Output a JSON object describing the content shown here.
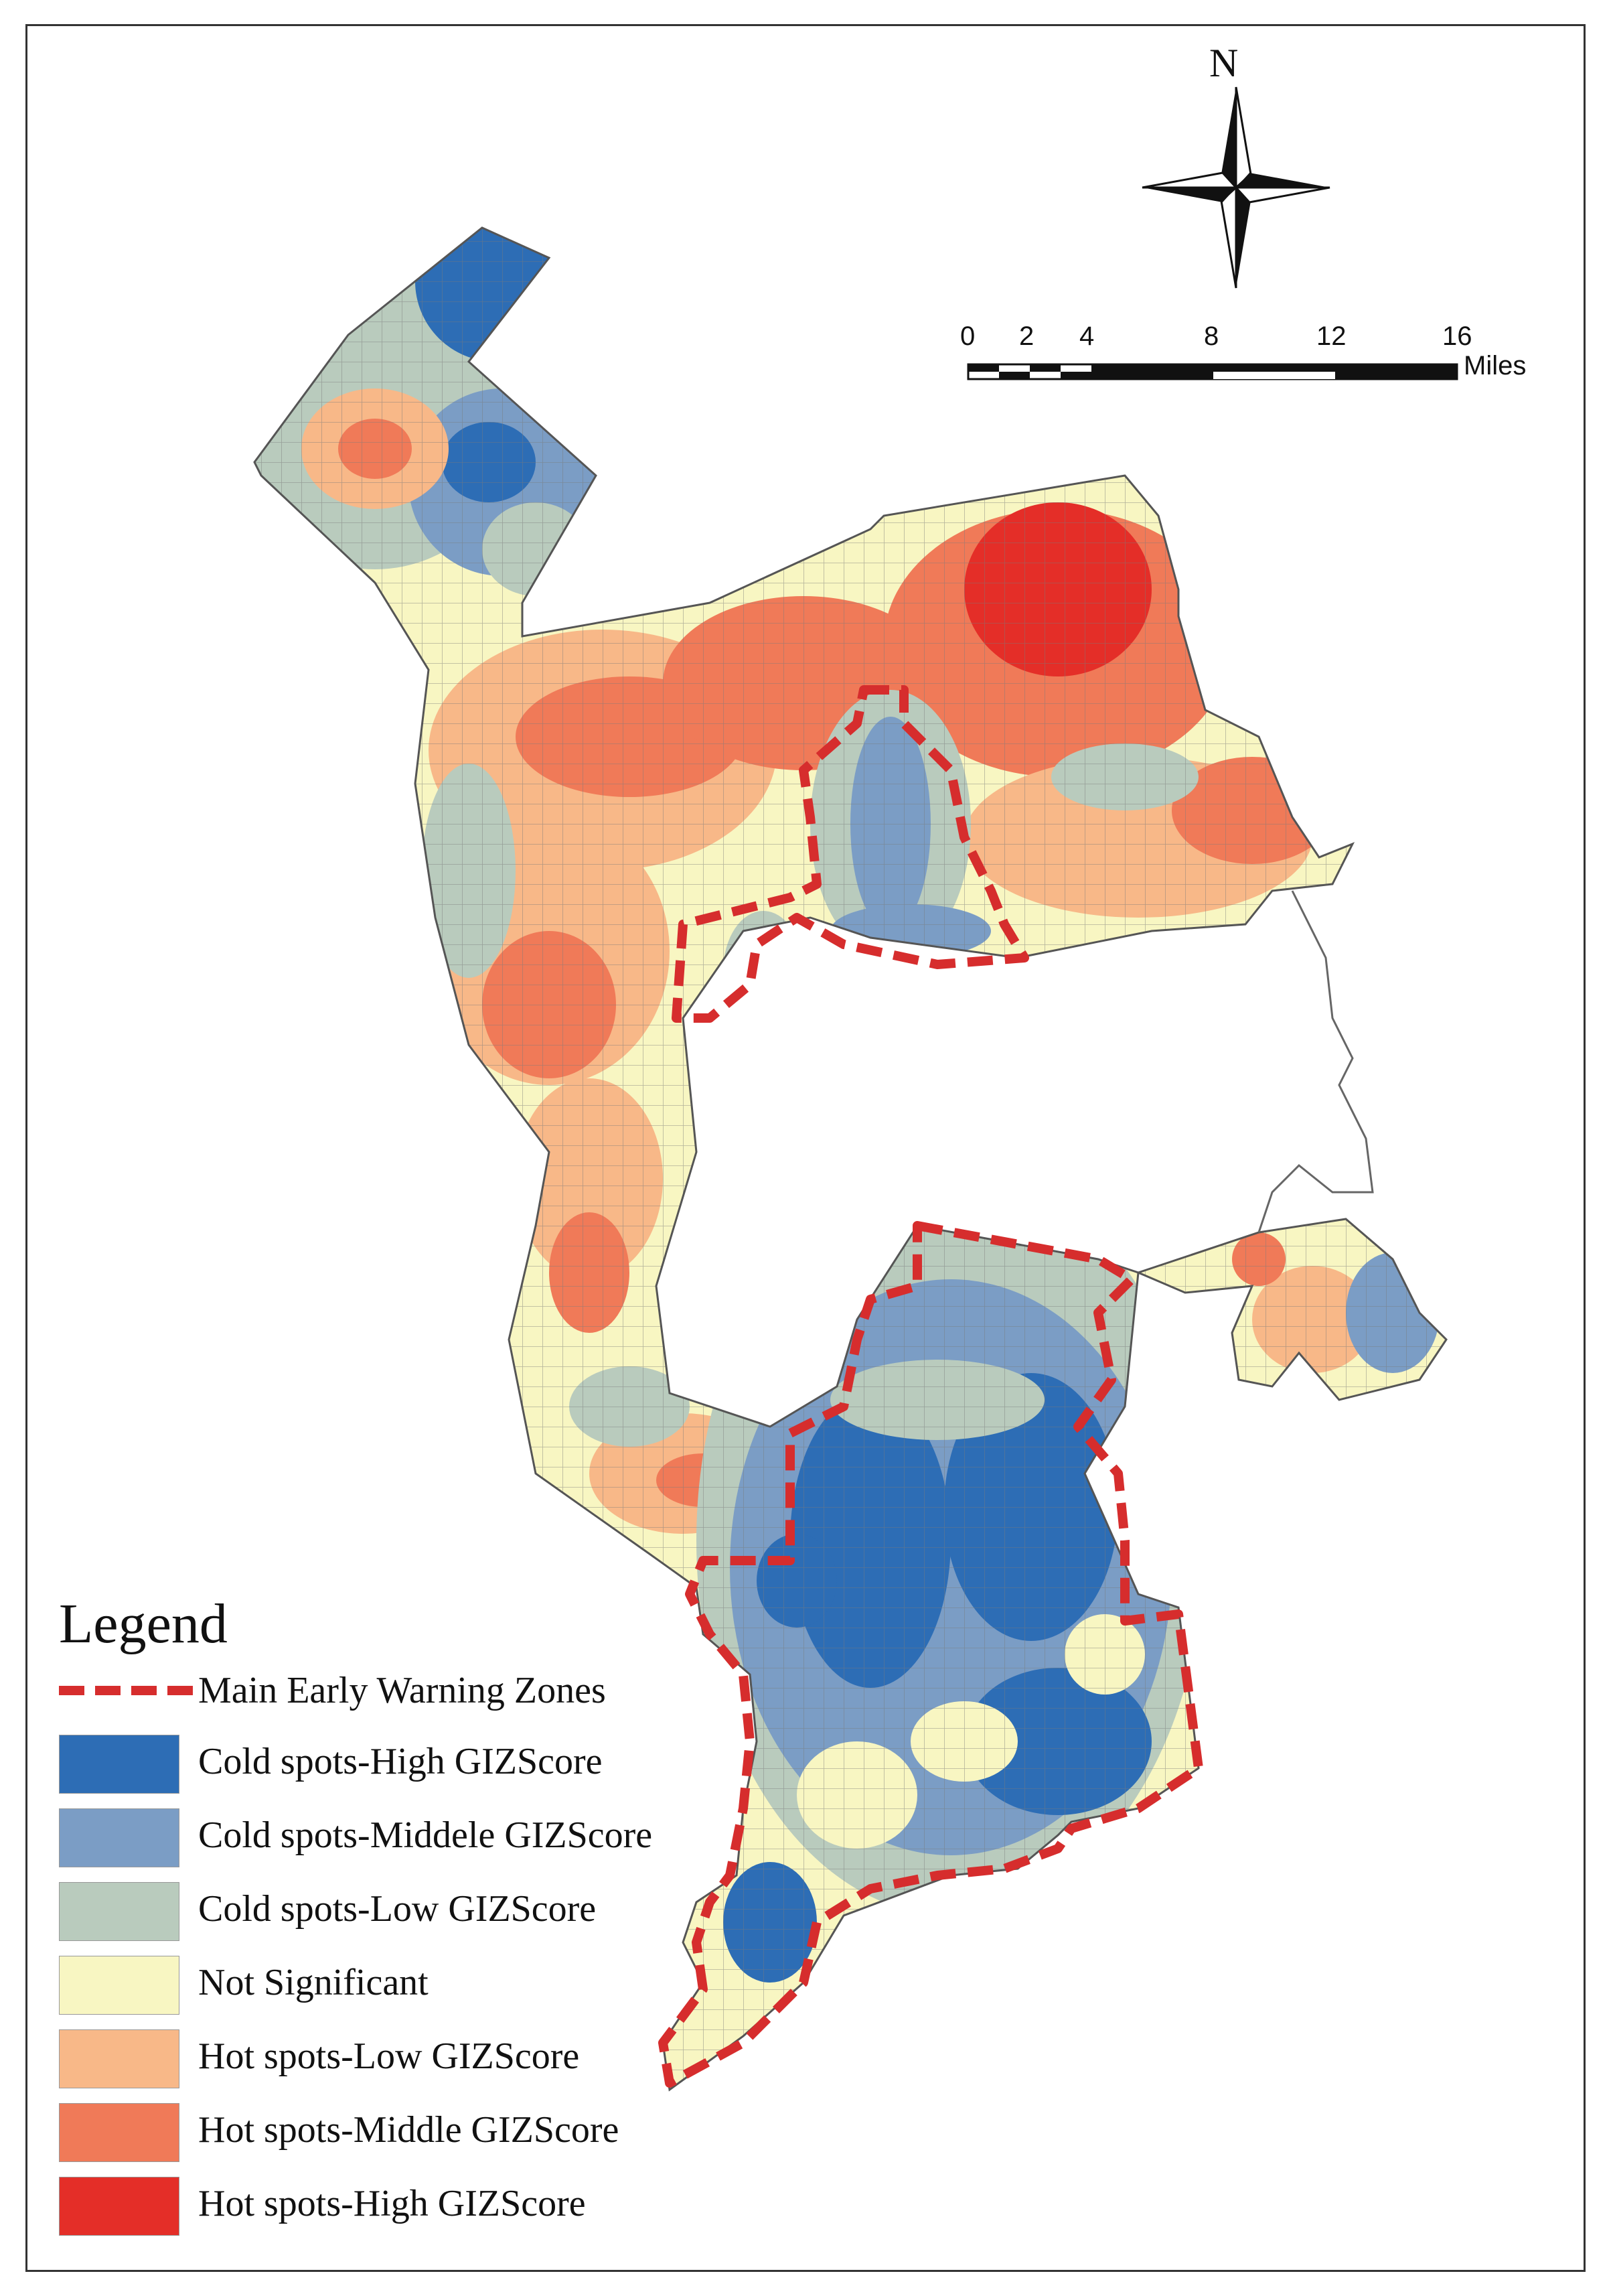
{
  "map": {
    "north_label": "N",
    "scale_bar": {
      "ticks": [
        "0",
        "2",
        "4",
        "8",
        "12",
        "16"
      ],
      "unit": "Miles"
    },
    "outline_color": "#555555",
    "zone_border_color": "#d62d2d",
    "unmapped_area": "white"
  },
  "legend": {
    "title": "Legend",
    "zone_label": "Main Early Warning Zones",
    "classes": [
      {
        "label": "Cold spots-High GIZScore",
        "color": "#2d6db5"
      },
      {
        "label": "Cold spots-Middele GIZScore",
        "color": "#7b9dc5"
      },
      {
        "label": "Cold spots-Low GIZScore",
        "color": "#b9cbbd"
      },
      {
        "label": "Not Significant",
        "color": "#f8f6c2"
      },
      {
        "label": "Hot spots-Low GIZScore",
        "color": "#f8b888"
      },
      {
        "label": "Hot spots-Middle GIZScore",
        "color": "#f07a58"
      },
      {
        "label": "Hot spots-High GIZScore",
        "color": "#e42e28"
      }
    ]
  }
}
